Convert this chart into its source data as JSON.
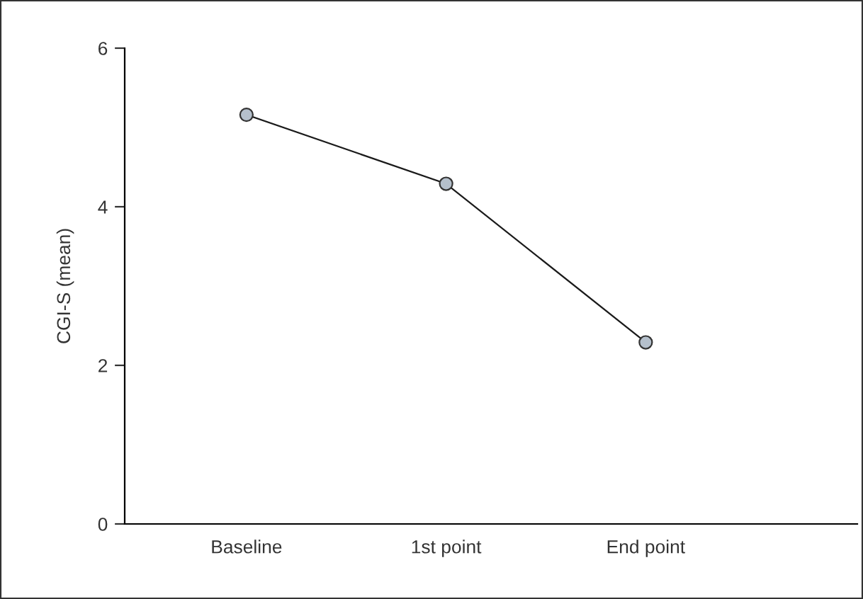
{
  "chart_data": {
    "type": "line",
    "ylabel": "CGI-S (mean)",
    "categories": [
      "Baseline",
      "1st point",
      "End point"
    ],
    "series": [
      {
        "color": "#1a1a1a",
        "values": [
          5.16,
          4.29,
          2.29
        ]
      }
    ],
    "ylim": [
      0,
      6
    ],
    "yticks": [
      0,
      2,
      4,
      6
    ],
    "grid": false,
    "legend": false,
    "marker": "circle",
    "line_style": "solid"
  }
}
